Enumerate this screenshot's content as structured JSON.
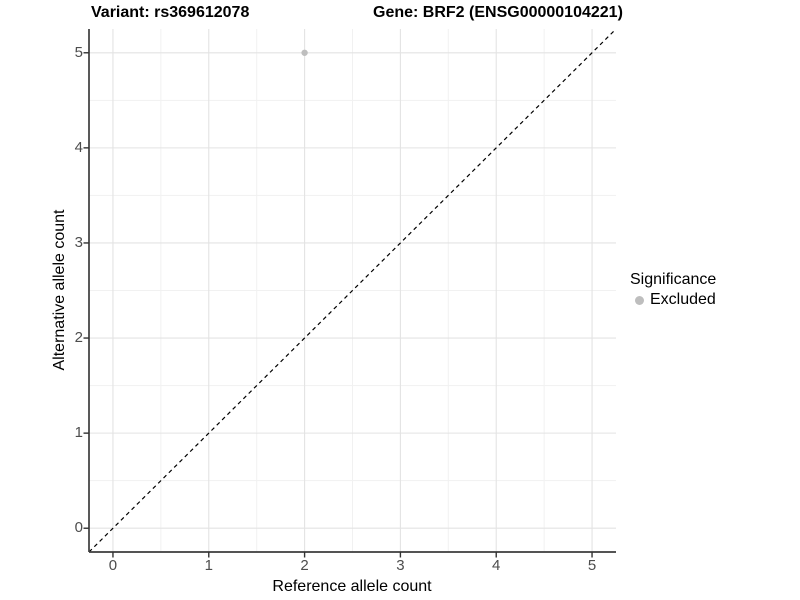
{
  "titles": {
    "variant": "Variant: rs369612078",
    "gene": "Gene: BRF2 (ENSG00000104221)"
  },
  "legend": {
    "title": "Significance",
    "items": [
      {
        "label": "Excluded",
        "color": "#bebebe"
      }
    ]
  },
  "chart_data": {
    "type": "scatter",
    "title": "Variant: rs369612078   Gene: BRF2 (ENSG00000104221)",
    "xlabel": "Reference allele count",
    "ylabel": "Alternative allele count",
    "xlim": [
      -0.25,
      5.25
    ],
    "ylim": [
      -0.25,
      5.25
    ],
    "x_ticks": [
      0,
      1,
      2,
      3,
      4,
      5
    ],
    "y_ticks": [
      0,
      1,
      2,
      3,
      4,
      5
    ],
    "minor_grid_step": 0.5,
    "grid": true,
    "legend_position": "right",
    "legend_title": "Significance",
    "series": [
      {
        "name": "Excluded",
        "color": "#bebebe",
        "points": [
          {
            "x": 2,
            "y": 5
          }
        ]
      }
    ],
    "reference_line": {
      "type": "identity",
      "slope": 1,
      "intercept": 0,
      "style": "dashed",
      "color": "#000000"
    }
  },
  "colors": {
    "background": "#ffffff",
    "panel_background": "#ffffff",
    "major_grid": "#e3e3e3",
    "minor_grid": "#f1f1f1",
    "axis_line": "#3c3c3c",
    "tick_mark": "#333333",
    "tick_label": "#4d4d4d",
    "point": "#bebebe",
    "dashed_line": "#000000"
  }
}
